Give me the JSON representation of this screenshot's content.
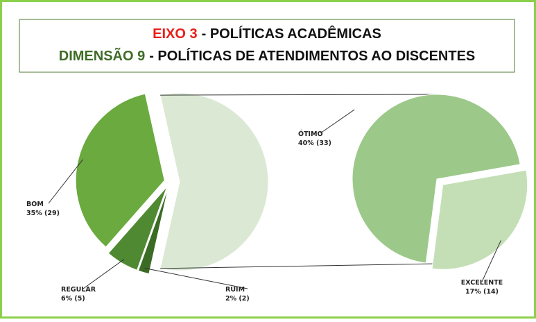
{
  "chart_data": {
    "type": "pie",
    "title": [
      "EIXO 3",
      "- POLÍTICAS ACADÊMICAS"
    ],
    "subtitle": [
      "DIMENSÃO 9",
      "- POLÍTICAS DE ATENDIMENTOS AO DISCENTES"
    ],
    "title_colors": [
      "#e8201a",
      "#111111"
    ],
    "subtitle_colors": [
      "#3e6b26",
      "#111111"
    ],
    "categories": [
      "BOM",
      "REGULAR",
      "RUIM",
      "ÓTIMO",
      "EXCELENTE"
    ],
    "values": [
      35,
      6,
      2,
      40,
      17
    ],
    "value_labels": [
      "35% (29)",
      "6% (5)",
      "2% (2)",
      "40% (33)",
      "17% (14)"
    ],
    "colors": [
      "#6aaa3e",
      "#4f8a32",
      "#3b6b24",
      "#9cc98a",
      "#c4dfb6"
    ],
    "other_color": "#dbe9d4",
    "second_pie_count": 2
  }
}
